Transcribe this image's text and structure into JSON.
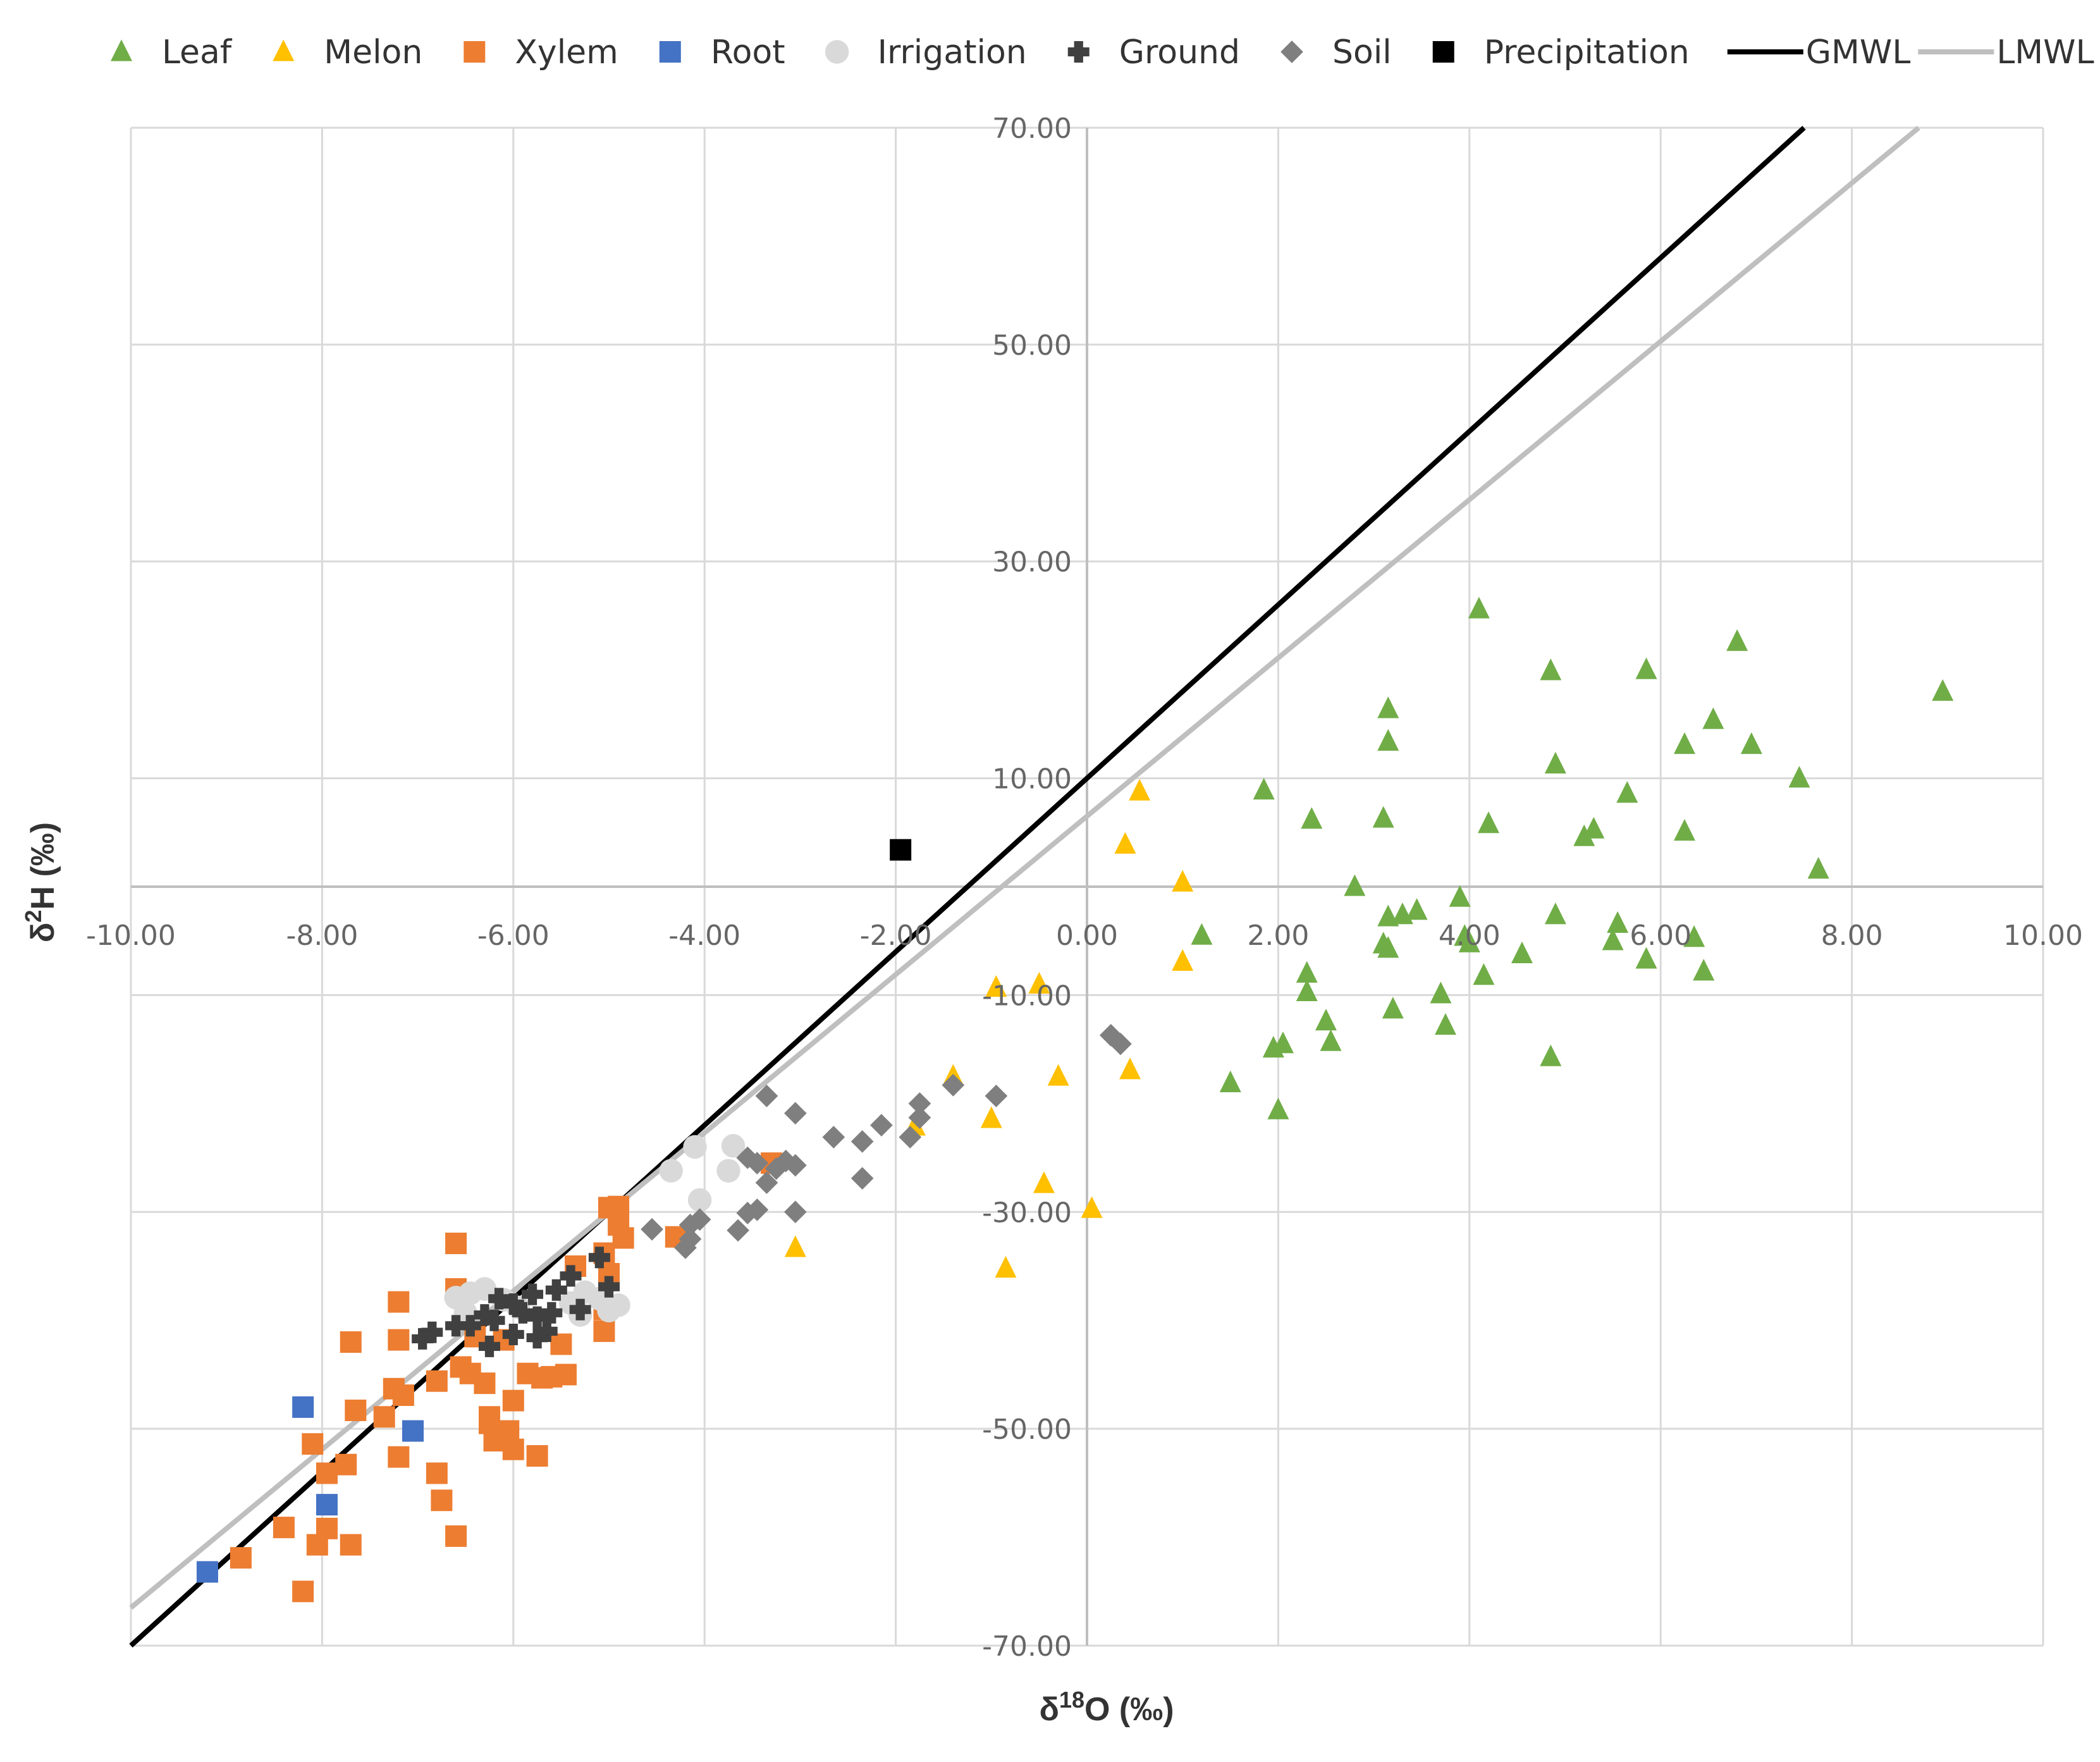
{
  "colors": {
    "leaf": "#70AD47",
    "melon": "#FFC000",
    "xylem": "#ED7D31",
    "root": "#4472C4",
    "irrigation": "#D9D9D9",
    "ground": "#404040",
    "soil": "#7F7F7F",
    "precipitation": "#000000",
    "gmwl": "#000000",
    "lmwl": "#BFBFBF",
    "grid": "#D9D9D9",
    "axis": "#BFBFBF",
    "text": "#595959"
  },
  "chart_data": {
    "type": "scatter",
    "title": "",
    "xlabel": "δ¹⁸O (‰)",
    "ylabel": "δ²H (‰)",
    "xlabel_parts": {
      "delta": "δ",
      "sup": "18",
      "rest": "O (‰)"
    },
    "ylabel_parts": {
      "delta": "δ",
      "sup": "2",
      "rest": "H (‰)"
    },
    "xlim": [
      -10,
      10
    ],
    "ylim": [
      -70,
      70
    ],
    "x_ticks": [
      -10,
      -8,
      -6,
      -4,
      -2,
      0,
      2,
      4,
      6,
      8,
      10
    ],
    "y_ticks": [
      -70,
      -50,
      -30,
      -10,
      10,
      30,
      50,
      70
    ],
    "x_tick_labels": [
      "-10.00",
      "-8.00",
      "-6.00",
      "-4.00",
      "-2.00",
      "0.00",
      "2.00",
      "4.00",
      "6.00",
      "8.00",
      "10.00"
    ],
    "y_tick_labels": [
      "-70.00",
      "-50.00",
      "-30.00",
      "-10.00",
      "10.00",
      "30.00",
      "50.00",
      "70.00"
    ],
    "grid": true,
    "legend_position": "top",
    "series": [
      {
        "name": "Leaf",
        "marker": "triangle",
        "color": "#70AD47",
        "points": [
          [
            4.1,
            25.6
          ],
          [
            4.85,
            19.9
          ],
          [
            5.85,
            20.0
          ],
          [
            6.8,
            22.6
          ],
          [
            8.95,
            18.0
          ],
          [
            3.15,
            16.4
          ],
          [
            6.55,
            15.4
          ],
          [
            3.15,
            13.4
          ],
          [
            6.25,
            13.1
          ],
          [
            6.95,
            13.1
          ],
          [
            4.9,
            11.3
          ],
          [
            7.45,
            10.0
          ],
          [
            1.85,
            8.9
          ],
          [
            5.65,
            8.6
          ],
          [
            2.35,
            6.2
          ],
          [
            3.1,
            6.3
          ],
          [
            4.2,
            5.8
          ],
          [
            5.2,
            4.6
          ],
          [
            5.3,
            5.3
          ],
          [
            6.25,
            5.1
          ],
          [
            7.65,
            1.6
          ],
          [
            2.8,
            0.0
          ],
          [
            3.9,
            -1.0
          ],
          [
            3.45,
            -2.2
          ],
          [
            3.15,
            -2.8
          ],
          [
            3.3,
            -2.6
          ],
          [
            4.9,
            -2.6
          ],
          [
            5.55,
            -3.4
          ],
          [
            1.2,
            -4.5
          ],
          [
            3.1,
            -5.3
          ],
          [
            3.15,
            -5.7
          ],
          [
            4.0,
            -5.2
          ],
          [
            5.5,
            -5.0
          ],
          [
            3.95,
            -4.6
          ],
          [
            4.55,
            -6.2
          ],
          [
            5.85,
            -6.7
          ],
          [
            6.35,
            -4.7
          ],
          [
            6.45,
            -7.8
          ],
          [
            2.3,
            -8.0
          ],
          [
            4.15,
            -8.2
          ],
          [
            2.3,
            -9.7
          ],
          [
            3.7,
            -9.9
          ],
          [
            3.2,
            -11.3
          ],
          [
            2.5,
            -12.4
          ],
          [
            3.75,
            -12.8
          ],
          [
            2.55,
            -14.3
          ],
          [
            1.95,
            -14.9
          ],
          [
            2.05,
            -14.5
          ],
          [
            4.85,
            -15.7
          ],
          [
            1.5,
            -18.1
          ],
          [
            2.0,
            -20.6
          ]
        ]
      },
      {
        "name": "Melon",
        "marker": "triangle",
        "color": "#FFC000",
        "points": [
          [
            0.55,
            8.8
          ],
          [
            0.4,
            3.9
          ],
          [
            1.0,
            0.4
          ],
          [
            1.0,
            -6.9
          ],
          [
            -0.95,
            -9.3
          ],
          [
            -0.5,
            -9.0
          ],
          [
            -1.4,
            -17.5
          ],
          [
            -0.3,
            -17.5
          ],
          [
            0.45,
            -16.9
          ],
          [
            -1.0,
            -21.4
          ],
          [
            -1.8,
            -22.1
          ],
          [
            -0.45,
            -27.4
          ],
          [
            0.05,
            -29.7
          ],
          [
            -3.05,
            -33.3
          ],
          [
            -0.85,
            -35.2
          ]
        ]
      },
      {
        "name": "Xylem",
        "marker": "square",
        "color": "#ED7D31",
        "points": [
          [
            -5.0,
            -29.6
          ],
          [
            -4.9,
            -29.5
          ],
          [
            -4.9,
            -31.2
          ],
          [
            -4.85,
            -32.4
          ],
          [
            -5.05,
            -33.8
          ],
          [
            -3.3,
            -25.5
          ],
          [
            -4.3,
            -32.3
          ],
          [
            -6.6,
            -32.9
          ],
          [
            -5.35,
            -35.0
          ],
          [
            -5.0,
            -35.7
          ],
          [
            -6.6,
            -37.1
          ],
          [
            -7.2,
            -38.3
          ],
          [
            -5.05,
            -39.0
          ],
          [
            -5.05,
            -41.0
          ],
          [
            -5.5,
            -42.2
          ],
          [
            -7.7,
            -42.0
          ],
          [
            -7.2,
            -41.8
          ],
          [
            -6.4,
            -41.5
          ],
          [
            -6.1,
            -41.8
          ],
          [
            -6.55,
            -44.3
          ],
          [
            -6.8,
            -45.6
          ],
          [
            -7.25,
            -46.3
          ],
          [
            -7.15,
            -46.9
          ],
          [
            -7.65,
            -48.3
          ],
          [
            -7.35,
            -48.9
          ],
          [
            -6.3,
            -45.8
          ],
          [
            -6.25,
            -48.9
          ],
          [
            -6.0,
            -47.4
          ],
          [
            -5.6,
            -45.2
          ],
          [
            -5.85,
            -44.9
          ],
          [
            -5.45,
            -45.0
          ],
          [
            -6.45,
            -44.9
          ],
          [
            -8.1,
            -51.4
          ],
          [
            -7.75,
            -53.3
          ],
          [
            -7.95,
            -54.1
          ],
          [
            -7.2,
            -52.6
          ],
          [
            -6.2,
            -51.1
          ],
          [
            -6.0,
            -51.9
          ],
          [
            -5.75,
            -52.5
          ],
          [
            -6.05,
            -50.2
          ],
          [
            -6.25,
            -49.5
          ],
          [
            -6.8,
            -54.1
          ],
          [
            -6.75,
            -56.6
          ],
          [
            -8.4,
            -59.1
          ],
          [
            -7.95,
            -59.2
          ],
          [
            -8.05,
            -60.7
          ],
          [
            -7.7,
            -60.7
          ],
          [
            -6.6,
            -59.9
          ],
          [
            -8.85,
            -61.9
          ],
          [
            -8.2,
            -65.0
          ],
          [
            -5.7,
            -45.3
          ]
        ]
      },
      {
        "name": "Root",
        "marker": "square",
        "color": "#4472C4",
        "points": [
          [
            -8.2,
            -48.0
          ],
          [
            -7.05,
            -50.2
          ],
          [
            -7.95,
            -57.0
          ],
          [
            -9.2,
            -63.2
          ]
        ]
      },
      {
        "name": "Irrigation",
        "marker": "circle",
        "color": "#D9D9D9",
        "points": [
          [
            -4.1,
            -24.0
          ],
          [
            -3.7,
            -23.9
          ],
          [
            -4.35,
            -26.2
          ],
          [
            -3.75,
            -26.2
          ],
          [
            -4.05,
            -28.9
          ],
          [
            -6.6,
            -37.9
          ],
          [
            -6.45,
            -37.5
          ],
          [
            -6.3,
            -37.1
          ],
          [
            -6.1,
            -38.1
          ],
          [
            -5.95,
            -38.8
          ],
          [
            -5.4,
            -38.4
          ],
          [
            -5.25,
            -37.4
          ],
          [
            -5.1,
            -38.0
          ],
          [
            -4.9,
            -38.6
          ],
          [
            -5.0,
            -39.1
          ],
          [
            -6.5,
            -39.3
          ],
          [
            -5.3,
            -39.5
          ]
        ]
      },
      {
        "name": "Ground",
        "marker": "plus",
        "color": "#404040",
        "points": [
          [
            -5.1,
            -34.2
          ],
          [
            -5.4,
            -35.9
          ],
          [
            -5.0,
            -36.9
          ],
          [
            -5.55,
            -37.2
          ],
          [
            -5.8,
            -37.6
          ],
          [
            -6.15,
            -38.0
          ],
          [
            -5.9,
            -39.3
          ],
          [
            -6.3,
            -39.5
          ],
          [
            -6.6,
            -40.5
          ],
          [
            -6.2,
            -40.0
          ],
          [
            -5.75,
            -39.7
          ],
          [
            -5.6,
            -39.3
          ],
          [
            -6.45,
            -40.5
          ],
          [
            -6.0,
            -41.3
          ],
          [
            -5.75,
            -41.6
          ],
          [
            -6.25,
            -42.4
          ],
          [
            -6.95,
            -41.7
          ],
          [
            -6.85,
            -41.1
          ],
          [
            -6.0,
            -38.5
          ],
          [
            -5.3,
            -39.0
          ],
          [
            -5.65,
            -41.0
          ]
        ]
      },
      {
        "name": "Soil",
        "marker": "diamond",
        "color": "#7F7F7F",
        "points": [
          [
            -3.35,
            -19.3
          ],
          [
            -3.05,
            -20.9
          ],
          [
            -2.65,
            -23.1
          ],
          [
            -2.35,
            -23.5
          ],
          [
            -2.15,
            -22.0
          ],
          [
            -1.85,
            -23.1
          ],
          [
            -1.75,
            -21.3
          ],
          [
            -1.75,
            -20.0
          ],
          [
            -1.4,
            -18.3
          ],
          [
            -0.95,
            -19.3
          ],
          [
            -3.45,
            -25.5
          ],
          [
            -3.05,
            -25.7
          ],
          [
            -3.25,
            -26.0
          ],
          [
            -3.35,
            -27.3
          ],
          [
            -3.15,
            -25.3
          ],
          [
            -3.55,
            -25.0
          ],
          [
            -3.45,
            -29.8
          ],
          [
            -3.55,
            -30.1
          ],
          [
            -3.65,
            -31.7
          ],
          [
            -3.05,
            -30.0
          ],
          [
            -2.35,
            -26.9
          ],
          [
            -4.05,
            -30.7
          ],
          [
            -4.15,
            -31.2
          ],
          [
            -4.55,
            -31.6
          ],
          [
            -4.15,
            -32.5
          ],
          [
            -4.2,
            -33.3
          ],
          [
            0.25,
            -13.7
          ],
          [
            0.35,
            -14.5
          ]
        ]
      },
      {
        "name": "Precipitation",
        "marker": "square",
        "color": "#000000",
        "points": [
          [
            -1.95,
            3.4
          ]
        ]
      }
    ],
    "lines": [
      {
        "name": "GMWL",
        "color": "#000000",
        "slope": 8,
        "intercept": 10,
        "equation": "δ2H = 8·δ18O + 10"
      },
      {
        "name": "LMWL",
        "color": "#BFBFBF",
        "slope": 7.3,
        "intercept": 6.5,
        "equation": "δ2H = 7.3·δ18O + 6.5"
      }
    ]
  }
}
